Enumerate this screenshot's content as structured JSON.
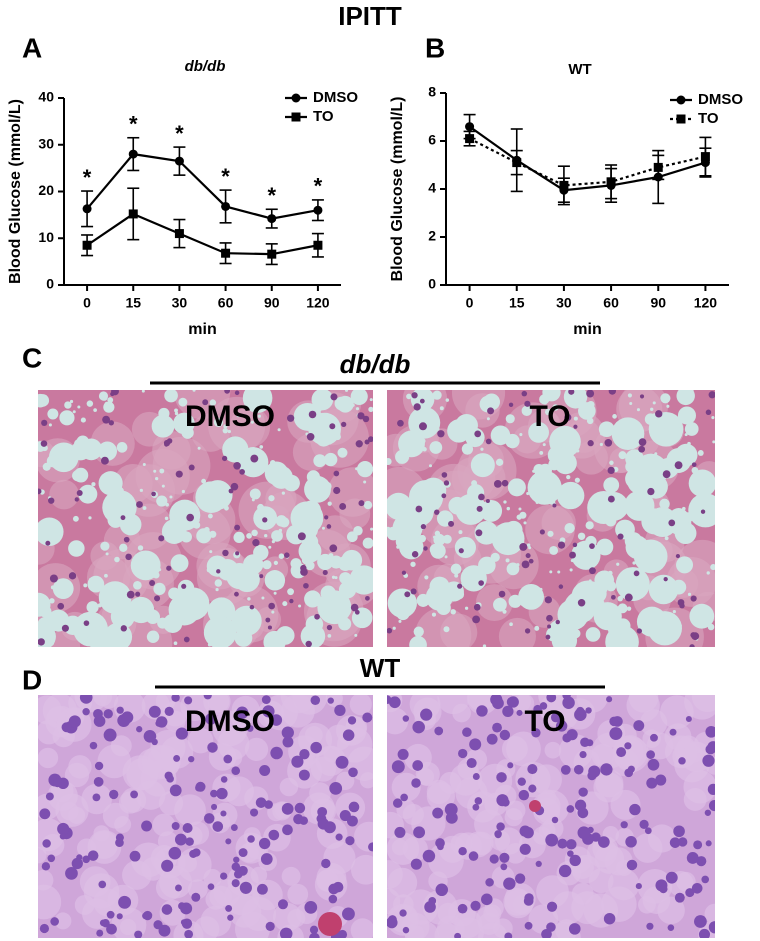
{
  "title": "IPITT",
  "chart_data": [
    {
      "type": "line",
      "panel": "A",
      "title": "db/db",
      "xlabel": "min",
      "ylabel": "Blood Glucose (mmol/L)",
      "categories": [
        "0",
        "15",
        "30",
        "60",
        "90",
        "120"
      ],
      "ylim": [
        0,
        40
      ],
      "yticks": [
        0,
        10,
        20,
        30,
        40
      ],
      "legend": "upper right",
      "series": [
        {
          "name": "DMSO",
          "color": "#000000",
          "marker": "circle",
          "dashed": false,
          "values": [
            16.3,
            28,
            26.5,
            16.8,
            14.2,
            16
          ],
          "errors": [
            3.8,
            3.5,
            3,
            3.5,
            2,
            2.2
          ]
        },
        {
          "name": "TO",
          "color": "#000000",
          "marker": "square",
          "dashed": false,
          "values": [
            8.5,
            15.2,
            11,
            6.8,
            6.6,
            8.5
          ],
          "errors": [
            2.2,
            5.5,
            3,
            2.2,
            2.2,
            2.5
          ]
        }
      ],
      "annotations": [
        "*",
        "*",
        "*",
        "*",
        "*",
        "*"
      ]
    },
    {
      "type": "line",
      "panel": "B",
      "title": "WT",
      "xlabel": "min",
      "ylabel": "Blood Glucose (mmol/L)",
      "categories": [
        "0",
        "15",
        "30",
        "60",
        "90",
        "120"
      ],
      "ylim": [
        0,
        8
      ],
      "yticks": [
        0,
        2,
        4,
        6,
        8
      ],
      "legend": "upper right",
      "series": [
        {
          "name": "DMSO",
          "color": "#000000",
          "marker": "circle",
          "dashed": false,
          "values": [
            6.6,
            5.2,
            3.95,
            4.15,
            4.5,
            5.1
          ],
          "errors": [
            0.5,
            1.3,
            0.5,
            0.7,
            1.1,
            0.6
          ]
        },
        {
          "name": "TO",
          "color": "#000000",
          "marker": "square",
          "dashed": true,
          "values": [
            6.1,
            5.1,
            4.15,
            4.3,
            4.9,
            5.35
          ],
          "errors": [
            0.3,
            0.5,
            0.8,
            0.7,
            0.5,
            0.8
          ]
        }
      ]
    }
  ],
  "panel_c": {
    "letter": "C",
    "group": "db/db",
    "left": "DMSO",
    "right": "TO"
  },
  "panel_d": {
    "letter": "D",
    "group": "WT",
    "left": "DMSO",
    "right": "TO"
  }
}
